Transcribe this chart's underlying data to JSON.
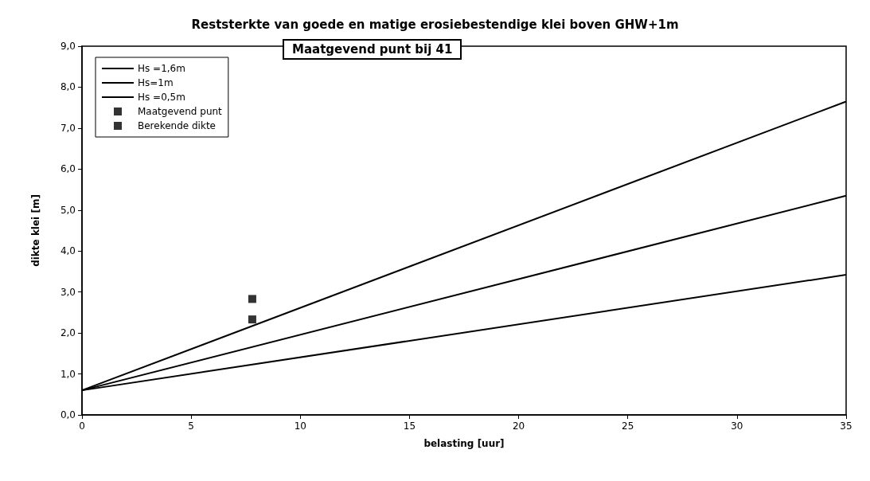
{
  "chart_data": {
    "type": "line",
    "title": "Reststerkte van goede en matige erosiebestendige klei boven GHW+1m",
    "annotations": [
      "Maatgevend punt bij 41"
    ],
    "xlabel": "belasting [uur]",
    "ylabel": "dikte klei [m]",
    "xlim": [
      0,
      35
    ],
    "xticks": [
      0,
      5,
      10,
      15,
      20,
      25,
      30,
      35
    ],
    "ylim": [
      0,
      9
    ],
    "yticks": [
      {
        "value": 0,
        "label": "0,0"
      },
      {
        "value": 1,
        "label": "1,0"
      },
      {
        "value": 2,
        "label": "2,0"
      },
      {
        "value": 3,
        "label": "3,0"
      },
      {
        "value": 4,
        "label": "4,0"
      },
      {
        "value": 5,
        "label": "5,0"
      },
      {
        "value": 6,
        "label": "6,0"
      },
      {
        "value": 7,
        "label": "7,0"
      },
      {
        "value": 8,
        "label": "8,0"
      },
      {
        "value": 9,
        "label": "9,0"
      }
    ],
    "grid": false,
    "legend": "top left",
    "series": [
      {
        "name": "Hs =1,6m",
        "color": "#000000",
        "marker": "none",
        "x": [
          0,
          35
        ],
        "values": [
          0.6,
          7.65
        ]
      },
      {
        "name": "Hs=1m",
        "color": "#000000",
        "marker": "none",
        "x": [
          0,
          35
        ],
        "values": [
          0.6,
          5.35
        ]
      },
      {
        "name": "Hs =0,5m",
        "color": "#000000",
        "marker": "none",
        "x": [
          0,
          35
        ],
        "values": [
          0.6,
          3.42
        ]
      },
      {
        "name": "Maatgevend punt",
        "type": "scatter",
        "color": "#000000",
        "marker": "square",
        "x": [
          7.8
        ],
        "values": [
          2.83
        ]
      },
      {
        "name": "Berekende dikte",
        "type": "scatter",
        "color": "#000000",
        "marker": "square",
        "x": [
          7.8
        ],
        "values": [
          2.33
        ]
      }
    ]
  }
}
